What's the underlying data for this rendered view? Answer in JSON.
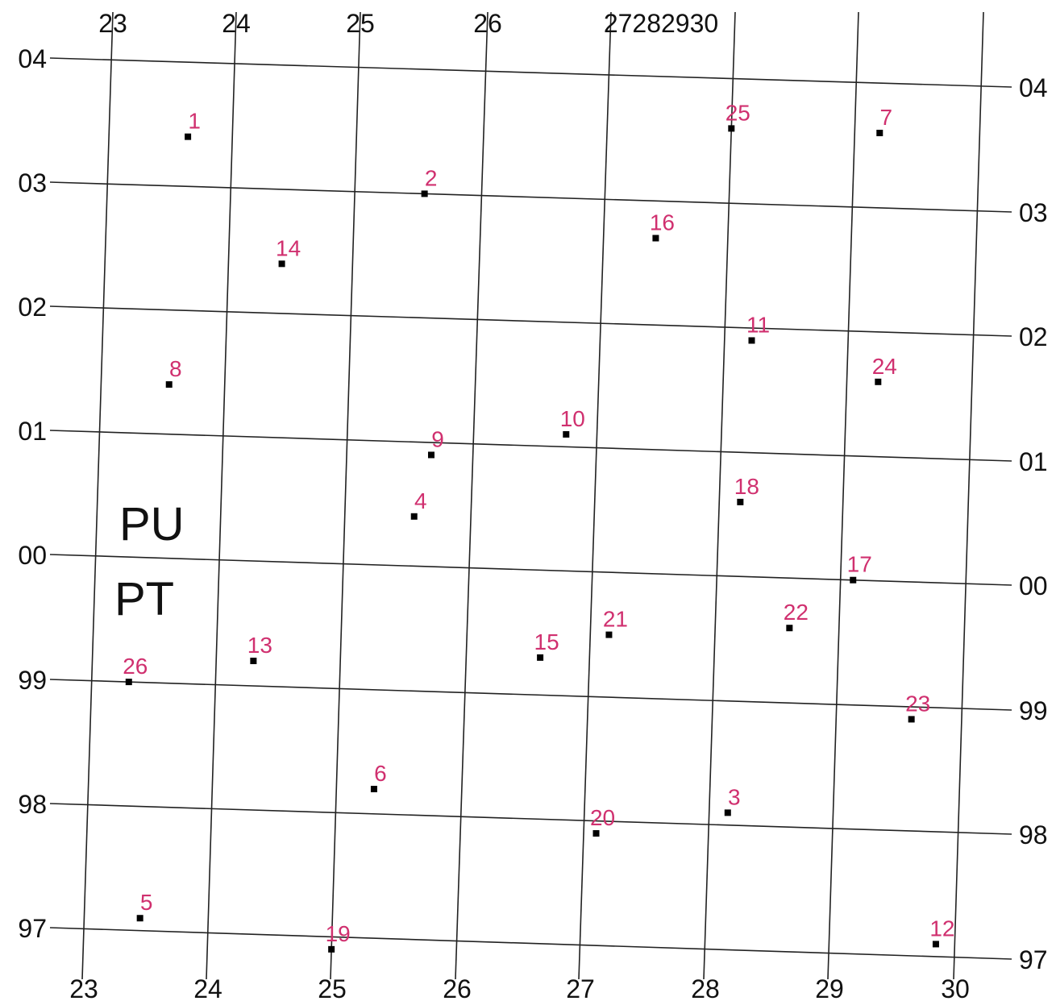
{
  "map": {
    "top_labels": [
      {
        "text": "23"
      },
      {
        "text": "24"
      },
      {
        "text": "25"
      },
      {
        "text": "26"
      },
      {
        "text": "27282930"
      }
    ],
    "bottom_labels": [
      "23",
      "24",
      "25",
      "26",
      "27",
      "28",
      "29",
      "30"
    ],
    "left_labels": [
      "04",
      "03",
      "02",
      "01",
      "00",
      "99",
      "98",
      "97"
    ],
    "right_labels": [
      "04",
      "03",
      "02",
      "01",
      "00",
      "99",
      "98",
      "97"
    ],
    "zones": [
      {
        "text": "PU"
      },
      {
        "text": "PT"
      }
    ],
    "point_color": "#d0306f",
    "marker_color": "#000000",
    "points": [
      {
        "label": "1",
        "e": 23.64,
        "n": 103.4
      },
      {
        "label": "2",
        "e": 25.55,
        "n": 103.0
      },
      {
        "label": "3",
        "e": 28.15,
        "n": 98.1
      },
      {
        "label": "4",
        "e": 25.55,
        "n": 100.4
      },
      {
        "label": "5",
        "e": 23.45,
        "n": 97.1
      },
      {
        "label": "6",
        "e": 25.3,
        "n": 98.2
      },
      {
        "label": "7",
        "e": 29.2,
        "n": 103.6
      },
      {
        "label": "8",
        "e": 23.55,
        "n": 101.4
      },
      {
        "label": "9",
        "e": 25.67,
        "n": 100.9
      },
      {
        "label": "10",
        "e": 26.75,
        "n": 101.1
      },
      {
        "label": "11",
        "e": 28.22,
        "n": 101.9
      },
      {
        "label": "12",
        "e": 29.85,
        "n": 97.1
      },
      {
        "label": "13",
        "e": 24.3,
        "n": 99.2
      },
      {
        "label": "14",
        "e": 24.43,
        "n": 102.4
      },
      {
        "label": "15",
        "e": 26.6,
        "n": 99.3
      },
      {
        "label": "16",
        "e": 27.42,
        "n": 102.7
      },
      {
        "label": "17",
        "e": 29.1,
        "n": 100.0
      },
      {
        "label": "18",
        "e": 28.17,
        "n": 100.6
      },
      {
        "label": "19",
        "e": 25.0,
        "n": 96.9
      },
      {
        "label": "20",
        "e": 27.1,
        "n": 97.9
      },
      {
        "label": "21",
        "e": 27.15,
        "n": 99.5
      },
      {
        "label": "22",
        "e": 28.6,
        "n": 99.6
      },
      {
        "label": "23",
        "e": 29.6,
        "n": 98.9
      },
      {
        "label": "24",
        "e": 29.25,
        "n": 101.6
      },
      {
        "label": "25",
        "e": 28.0,
        "n": 103.6
      },
      {
        "label": "26",
        "e": 23.3,
        "n": 99.0
      }
    ]
  }
}
